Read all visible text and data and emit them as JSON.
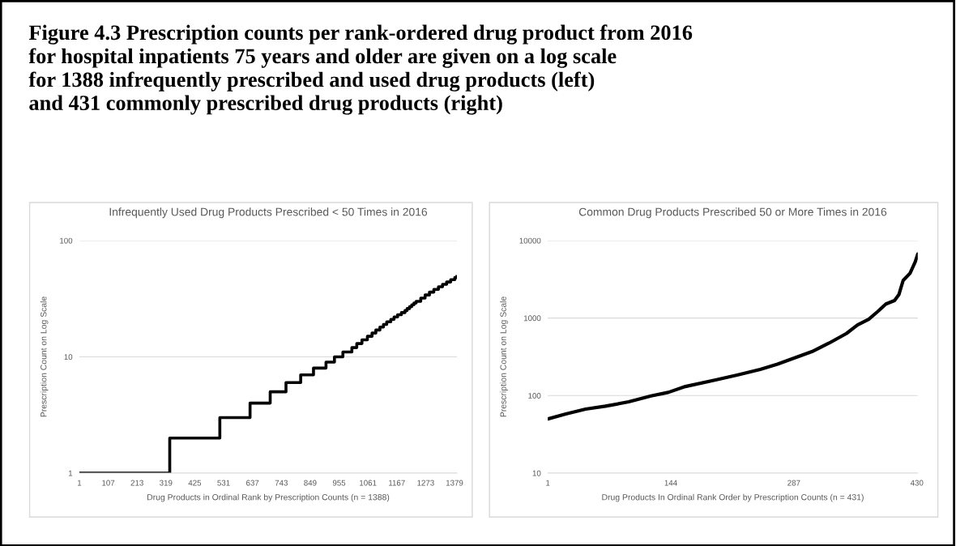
{
  "chart_data": [
    {
      "type": "step",
      "title": "Infrequently Used Drug Products Prescribed < 50 Times in 2016",
      "xlabel": "Drug Products in Ordinal Rank by Prescription Counts (n = 1388)",
      "ylabel": "Prescription Count on Log Scale",
      "annotations": [
        "Figure 4.3 Prescription counts per rank-ordered drug product from 2016\nfor hospital inpatients 75 years and older are given on a log scale\nfor 1388 infrequently prescribed and used drug products (left)\nand 431 commonly prescribed drug products (right)"
      ],
      "x": [
        1,
        333,
        517,
        628,
        702,
        760,
        814,
        861,
        907,
        938,
        969,
        1002,
        1020,
        1039,
        1059,
        1076,
        1090,
        1105,
        1118,
        1130,
        1145,
        1157,
        1170,
        1184,
        1197,
        1205,
        1214,
        1222,
        1230,
        1238,
        1255,
        1271,
        1287,
        1303,
        1320,
        1335,
        1350,
        1365,
        1380,
        1388
      ],
      "series": [
        {
          "color": "#000000",
          "values": [
            1,
            2,
            3,
            4,
            5,
            6,
            7,
            8,
            9,
            10,
            11,
            12,
            13,
            14,
            15,
            16,
            17,
            18,
            19,
            20,
            21,
            22,
            23,
            24,
            25,
            26,
            27,
            28,
            29,
            30,
            32,
            34,
            36,
            38,
            40,
            42,
            44,
            46,
            48,
            49
          ]
        }
      ],
      "log": "y",
      "xlim": [
        1,
        1388
      ],
      "xticks": [
        1,
        107,
        213,
        319,
        425,
        531,
        637,
        743,
        849,
        955,
        1061,
        1167,
        1273,
        1379
      ],
      "ylim": [
        1,
        100
      ],
      "yticks": [
        1,
        10,
        100
      ],
      "grid": "y"
    },
    {
      "type": "line",
      "title": "Common Drug Products Prescribed 50 or More Times in 2016",
      "xlabel": "Drug Products In Ordinal Rank Order by Prescription Counts (n = 431)",
      "ylabel": "Prescription Count on Log Scale",
      "x": [
        1,
        22,
        45,
        68,
        95,
        121,
        141,
        161,
        195,
        221,
        248,
        268,
        288,
        308,
        328,
        348,
        361,
        374,
        384,
        394,
        404,
        409,
        414,
        422,
        428,
        431
      ],
      "series": [
        {
          "color": "#000000",
          "values": [
            50,
            58,
            67,
            73,
            83,
            99,
            110,
            131,
            158,
            184,
            218,
            254,
            306,
            369,
            476,
            631,
            815,
            966,
            1200,
            1520,
            1680,
            2000,
            3050,
            3780,
            5300,
            6700
          ]
        }
      ],
      "log": "y",
      "xlim": [
        1,
        431
      ],
      "xticks": [
        1,
        144,
        287,
        430
      ],
      "ylim": [
        10,
        10000
      ],
      "yticks": [
        10,
        100,
        1000,
        10000
      ],
      "grid": "y"
    }
  ]
}
